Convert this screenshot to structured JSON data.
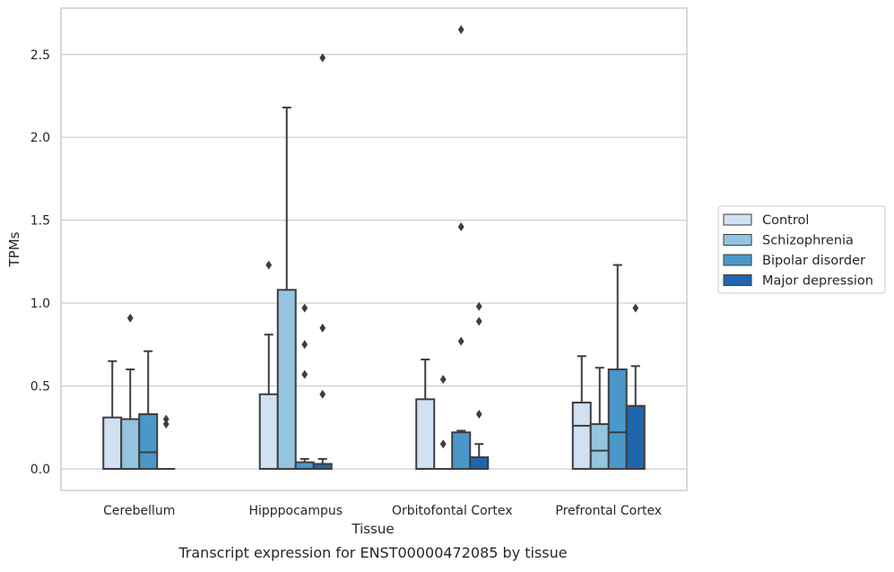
{
  "caption": "Transcript expression for ENST00000472085 by tissue",
  "colors": {
    "grid": "#cccccc",
    "frame": "#cccccc",
    "outline": "#3d3d3d",
    "background": "#ffffff",
    "legend_border": "#cccccc"
  },
  "chart_data": {
    "type": "box",
    "xlabel": "Tissue",
    "ylabel": "TPMs",
    "ylim": [
      -0.13,
      2.78
    ],
    "yticks": [
      0.0,
      0.5,
      1.0,
      1.5,
      2.0,
      2.5
    ],
    "ytick_labels": [
      "0.0",
      "0.5",
      "1.0",
      "1.5",
      "2.0",
      "2.5"
    ],
    "grid": "horizontal",
    "legend_position": "right",
    "categories": [
      "Cerebellum",
      "Hipppocampus",
      "Orbitofontal Cortex",
      "Prefrontal Cortex"
    ],
    "series": [
      {
        "name": "Control",
        "color": "#d0e1f2",
        "boxes": [
          {
            "q1": 0.0,
            "median": 0.0,
            "q3": 0.31,
            "whisker_low": 0.0,
            "whisker_high": 0.65,
            "outliers": []
          },
          {
            "q1": 0.0,
            "median": 0.0,
            "q3": 0.45,
            "whisker_low": 0.0,
            "whisker_high": 0.81,
            "outliers": [
              1.23
            ]
          },
          {
            "q1": 0.0,
            "median": 0.0,
            "q3": 0.42,
            "whisker_low": 0.0,
            "whisker_high": 0.66,
            "outliers": []
          },
          {
            "q1": 0.0,
            "median": 0.26,
            "q3": 0.4,
            "whisker_low": 0.0,
            "whisker_high": 0.68,
            "outliers": []
          }
        ]
      },
      {
        "name": "Schizophrenia",
        "color": "#94c4df",
        "boxes": [
          {
            "q1": 0.0,
            "median": 0.0,
            "q3": 0.3,
            "whisker_low": 0.0,
            "whisker_high": 0.6,
            "outliers": [
              0.91
            ]
          },
          {
            "q1": 0.0,
            "median": 0.0,
            "q3": 1.08,
            "whisker_low": 0.0,
            "whisker_high": 2.18,
            "outliers": []
          },
          {
            "q1": 0.0,
            "median": 0.0,
            "q3": 0.0,
            "whisker_low": 0.0,
            "whisker_high": 0.0,
            "outliers": [
              0.54,
              0.15
            ]
          },
          {
            "q1": 0.0,
            "median": 0.11,
            "q3": 0.27,
            "whisker_low": 0.0,
            "whisker_high": 0.61,
            "outliers": []
          }
        ]
      },
      {
        "name": "Bipolar disorder",
        "color": "#4a98c9",
        "boxes": [
          {
            "q1": 0.0,
            "median": 0.1,
            "q3": 0.33,
            "whisker_low": 0.0,
            "whisker_high": 0.71,
            "outliers": []
          },
          {
            "q1": 0.0,
            "median": 0.0,
            "q3": 0.04,
            "whisker_low": 0.0,
            "whisker_high": 0.06,
            "outliers": [
              0.97,
              0.75,
              0.57
            ]
          },
          {
            "q1": 0.0,
            "median": 0.0,
            "q3": 0.22,
            "whisker_low": 0.0,
            "whisker_high": 0.23,
            "outliers": [
              2.65,
              1.46,
              0.77
            ]
          },
          {
            "q1": 0.0,
            "median": 0.22,
            "q3": 0.6,
            "whisker_low": 0.0,
            "whisker_high": 1.23,
            "outliers": []
          }
        ]
      },
      {
        "name": "Major depression",
        "color": "#2166ac",
        "boxes": [
          {
            "q1": 0.0,
            "median": 0.0,
            "q3": 0.0,
            "whisker_low": 0.0,
            "whisker_high": 0.0,
            "outliers": [
              0.3,
              0.27
            ]
          },
          {
            "q1": 0.0,
            "median": 0.0,
            "q3": 0.03,
            "whisker_low": 0.0,
            "whisker_high": 0.06,
            "outliers": [
              2.48,
              0.85,
              0.45
            ]
          },
          {
            "q1": 0.0,
            "median": 0.0,
            "q3": 0.07,
            "whisker_low": 0.0,
            "whisker_high": 0.15,
            "outliers": [
              0.98,
              0.89,
              0.33
            ]
          },
          {
            "q1": 0.0,
            "median": 0.0,
            "q3": 0.38,
            "whisker_low": 0.0,
            "whisker_high": 0.62,
            "outliers": [
              0.97
            ]
          }
        ]
      }
    ]
  }
}
